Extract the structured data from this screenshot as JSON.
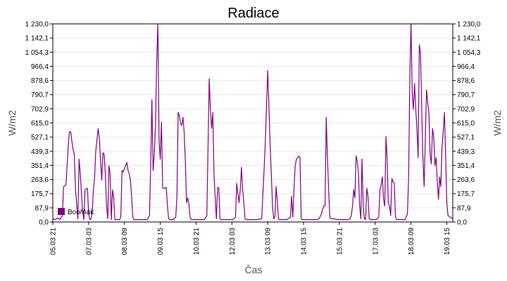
{
  "chart_data": {
    "type": "line",
    "title": "Radiace",
    "xlabel": "Čas",
    "ylabel": "W/m2",
    "ylabel_right": "W/m2",
    "ylim": [
      0,
      1230
    ],
    "yticks": [
      "0,0",
      "87,9",
      "175,7",
      "263,6",
      "351,4",
      "439,3",
      "527,1",
      "615,0",
      "702,9",
      "790,7",
      "878,6",
      "966,4",
      "1 054,3",
      "1 142,1",
      "1 230,0"
    ],
    "xticks": [
      "05.03 21",
      "07.03 03",
      "08.03 09",
      "09.03 15",
      "10.03 21",
      "12.03 03",
      "13.03 09",
      "14.03 15",
      "15.03 21",
      "17.03 03",
      "18.03 09",
      "19.03 15"
    ],
    "x_start": "05.03 21",
    "x_end": "19.03 20",
    "grid": true,
    "legend_position": "bottom-left",
    "series": [
      {
        "name": "Bouřňák",
        "color": "#800080",
        "points": [
          [
            "05.03 21",
            20
          ],
          [
            "05.03 23",
            15
          ],
          [
            "06.03 01",
            25
          ],
          [
            "06.03 03",
            15
          ],
          [
            "06.03 05",
            40
          ],
          [
            "06.03 06",
            220
          ],
          [
            "06.03 08",
            230
          ],
          [
            "06.03 10",
            480
          ],
          [
            "06.03 11",
            560
          ],
          [
            "06.03 12",
            560
          ],
          [
            "06.03 13",
            500
          ],
          [
            "06.03 14",
            450
          ],
          [
            "06.03 15",
            420
          ],
          [
            "06.03 16",
            200
          ],
          [
            "06.03 17",
            110
          ],
          [
            "06.03 18",
            20
          ],
          [
            "06.03 19",
            390
          ],
          [
            "06.03 20",
            300
          ],
          [
            "06.03 22",
            60
          ],
          [
            "06.03 23",
            15
          ],
          [
            "07.03 00",
            200
          ],
          [
            "07.03 02",
            210
          ],
          [
            "07.03 03",
            50
          ],
          [
            "07.03 04",
            15
          ],
          [
            "07.03 05",
            20
          ],
          [
            "07.03 06",
            60
          ],
          [
            "07.03 07",
            200
          ],
          [
            "07.03 08",
            270
          ],
          [
            "07.03 09",
            440
          ],
          [
            "07.03 10",
            510
          ],
          [
            "07.03 11",
            580
          ],
          [
            "07.03 12",
            520
          ],
          [
            "07.03 13",
            380
          ],
          [
            "07.03 14",
            260
          ],
          [
            "07.03 15",
            430
          ],
          [
            "07.03 16",
            420
          ],
          [
            "07.03 17",
            300
          ],
          [
            "07.03 18",
            100
          ],
          [
            "07.03 19",
            20
          ],
          [
            "07.03 20",
            350
          ],
          [
            "07.03 21",
            300
          ],
          [
            "07.03 22",
            15
          ],
          [
            "07.03 23",
            200
          ],
          [
            "08.03 00",
            150
          ],
          [
            "08.03 01",
            15
          ],
          [
            "08.03 03",
            15
          ],
          [
            "08.03 05",
            15
          ],
          [
            "08.03 06",
            30
          ],
          [
            "08.03 07",
            320
          ],
          [
            "08.03 08",
            310
          ],
          [
            "08.03 09",
            330
          ],
          [
            "08.03 10",
            350
          ],
          [
            "08.03 11",
            370
          ],
          [
            "08.03 12",
            320
          ],
          [
            "08.03 13",
            300
          ],
          [
            "08.03 14",
            260
          ],
          [
            "08.03 15",
            160
          ],
          [
            "08.03 16",
            30
          ],
          [
            "08.03 17",
            15
          ],
          [
            "08.03 20",
            15
          ],
          [
            "09.03 00",
            15
          ],
          [
            "09.03 04",
            15
          ],
          [
            "09.03 06",
            40
          ],
          [
            "09.03 07",
            350
          ],
          [
            "09.03 08",
            760
          ],
          [
            "09.03 09",
            320
          ],
          [
            "09.03 10",
            420
          ],
          [
            "09.03 11",
            600
          ],
          [
            "09.03 12",
            1000
          ],
          [
            "09.03 13",
            1230
          ],
          [
            "09.03 14",
            500
          ],
          [
            "09.03 15",
            390
          ],
          [
            "09.03 16",
            620
          ],
          [
            "09.03 17",
            210
          ],
          [
            "09.03 18",
            210
          ],
          [
            "09.03 19",
            210
          ],
          [
            "09.03 20",
            215
          ],
          [
            "09.03 21",
            100
          ],
          [
            "09.03 22",
            20
          ],
          [
            "09.03 23",
            15
          ],
          [
            "10.03 00",
            15
          ],
          [
            "10.03 02",
            15
          ],
          [
            "10.03 04",
            30
          ],
          [
            "10.03 05",
            160
          ],
          [
            "10.03 06",
            680
          ],
          [
            "10.03 07",
            660
          ],
          [
            "10.03 08",
            610
          ],
          [
            "10.03 09",
            600
          ],
          [
            "10.03 10",
            650
          ],
          [
            "10.03 11",
            560
          ],
          [
            "10.03 12",
            380
          ],
          [
            "10.03 13",
            120
          ],
          [
            "10.03 14",
            150
          ],
          [
            "10.03 15",
            110
          ],
          [
            "10.03 16",
            30
          ],
          [
            "10.03 17",
            15
          ],
          [
            "10.03 20",
            15
          ],
          [
            "11.03 00",
            15
          ],
          [
            "11.03 04",
            15
          ],
          [
            "11.03 06",
            40
          ],
          [
            "11.03 07",
            450
          ],
          [
            "11.03 08",
            890
          ],
          [
            "11.03 09",
            700
          ],
          [
            "11.03 10",
            580
          ],
          [
            "11.03 11",
            680
          ],
          [
            "11.03 12",
            300
          ],
          [
            "11.03 13",
            150
          ],
          [
            "11.03 14",
            20
          ],
          [
            "11.03 15",
            215
          ],
          [
            "11.03 16",
            210
          ],
          [
            "11.03 17",
            20
          ],
          [
            "11.03 18",
            15
          ],
          [
            "12.03 00",
            15
          ],
          [
            "12.03 02",
            15
          ],
          [
            "12.03 04",
            15
          ],
          [
            "12.03 06",
            30
          ],
          [
            "12.03 07",
            240
          ],
          [
            "12.03 08",
            180
          ],
          [
            "12.03 09",
            120
          ],
          [
            "12.03 10",
            200
          ],
          [
            "12.03 11",
            340
          ],
          [
            "12.03 12",
            200
          ],
          [
            "12.03 13",
            120
          ],
          [
            "12.03 14",
            20
          ],
          [
            "12.03 15",
            15
          ],
          [
            "12.03 20",
            15
          ],
          [
            "13.03 00",
            15
          ],
          [
            "13.03 04",
            20
          ],
          [
            "13.03 05",
            180
          ],
          [
            "13.03 06",
            330
          ],
          [
            "13.03 07",
            500
          ],
          [
            "13.03 08",
            720
          ],
          [
            "13.03 09",
            940
          ],
          [
            "13.03 10",
            720
          ],
          [
            "13.03 11",
            480
          ],
          [
            "13.03 12",
            300
          ],
          [
            "13.03 13",
            100
          ],
          [
            "13.03 14",
            20
          ],
          [
            "13.03 15",
            30
          ],
          [
            "13.03 16",
            220
          ],
          [
            "13.03 17",
            130
          ],
          [
            "13.03 18",
            20
          ],
          [
            "13.03 19",
            15
          ],
          [
            "13.03 22",
            15
          ],
          [
            "14.03 01",
            15
          ],
          [
            "14.03 04",
            30
          ],
          [
            "14.03 05",
            160
          ],
          [
            "14.03 06",
            30
          ],
          [
            "14.03 07",
            200
          ],
          [
            "14.03 08",
            350
          ],
          [
            "14.03 09",
            390
          ],
          [
            "14.03 10",
            400
          ],
          [
            "14.03 11",
            410
          ],
          [
            "14.03 12",
            400
          ],
          [
            "14.03 13",
            20
          ],
          [
            "14.03 14",
            15
          ],
          [
            "14.03 17",
            15
          ],
          [
            "14.03 20",
            15
          ],
          [
            "14.03 23",
            15
          ],
          [
            "15.03 02",
            15
          ],
          [
            "15.03 04",
            20
          ],
          [
            "15.03 06",
            50
          ],
          [
            "15.03 07",
            80
          ],
          [
            "15.03 08",
            100
          ],
          [
            "15.03 09",
            100
          ],
          [
            "15.03 10",
            650
          ],
          [
            "15.03 11",
            400
          ],
          [
            "15.03 12",
            200
          ],
          [
            "15.03 13",
            30
          ],
          [
            "15.03 14",
            20
          ],
          [
            "15.03 16",
            20
          ],
          [
            "15.03 20",
            15
          ],
          [
            "16.03 00",
            15
          ],
          [
            "16.03 04",
            15
          ],
          [
            "16.03 06",
            20
          ],
          [
            "16.03 07",
            40
          ],
          [
            "16.03 08",
            100
          ],
          [
            "16.03 09",
            200
          ],
          [
            "16.03 10",
            150
          ],
          [
            "16.03 11",
            410
          ],
          [
            "16.03 12",
            380
          ],
          [
            "16.03 13",
            300
          ],
          [
            "16.03 14",
            100
          ],
          [
            "16.03 15",
            20
          ],
          [
            "16.03 16",
            390
          ],
          [
            "16.03 17",
            100
          ],
          [
            "16.03 18",
            20
          ],
          [
            "16.03 19",
            15
          ],
          [
            "16.03 20",
            210
          ],
          [
            "16.03 21",
            160
          ],
          [
            "16.03 22",
            20
          ],
          [
            "16.03 23",
            15
          ],
          [
            "17.03 04",
            15
          ],
          [
            "17.03 06",
            30
          ],
          [
            "17.03 07",
            200
          ],
          [
            "17.03 08",
            230
          ],
          [
            "17.03 09",
            280
          ],
          [
            "17.03 10",
            140
          ],
          [
            "17.03 11",
            100
          ],
          [
            "17.03 12",
            530
          ],
          [
            "17.03 13",
            400
          ],
          [
            "17.03 14",
            120
          ],
          [
            "17.03 15",
            100
          ],
          [
            "17.03 16",
            40
          ],
          [
            "17.03 17",
            270
          ],
          [
            "17.03 18",
            250
          ],
          [
            "17.03 19",
            240
          ],
          [
            "17.03 20",
            30
          ],
          [
            "17.03 21",
            15
          ],
          [
            "18.03 00",
            15
          ],
          [
            "18.03 04",
            15
          ],
          [
            "18.03 06",
            50
          ],
          [
            "18.03 07",
            280
          ],
          [
            "18.03 08",
            900
          ],
          [
            "18.03 09",
            1230
          ],
          [
            "18.03 10",
            800
          ],
          [
            "18.03 11",
            700
          ],
          [
            "18.03 12",
            860
          ],
          [
            "18.03 13",
            700
          ],
          [
            "18.03 14",
            580
          ],
          [
            "18.03 15",
            400
          ],
          [
            "18.03 16",
            1100
          ],
          [
            "18.03 17",
            1050
          ],
          [
            "18.03 18",
            700
          ],
          [
            "18.03 19",
            400
          ],
          [
            "18.03 20",
            220
          ],
          [
            "18.03 21",
            520
          ],
          [
            "18.03 22",
            820
          ],
          [
            "18.03 23",
            740
          ],
          [
            "19.03 00",
            680
          ],
          [
            "19.03 01",
            420
          ],
          [
            "19.03 02",
            360
          ],
          [
            "19.03 03",
            580
          ],
          [
            "19.03 04",
            530
          ],
          [
            "19.03 05",
            350
          ],
          [
            "19.03 06",
            400
          ],
          [
            "19.03 07",
            250
          ],
          [
            "19.03 08",
            140
          ],
          [
            "19.03 09",
            280
          ],
          [
            "19.03 10",
            220
          ],
          [
            "19.03 11",
            460
          ],
          [
            "19.03 12",
            560
          ],
          [
            "19.03 13",
            680
          ],
          [
            "19.03 14",
            420
          ],
          [
            "19.03 15",
            120
          ],
          [
            "19.03 16",
            40
          ],
          [
            "19.03 18",
            30
          ],
          [
            "19.03 20",
            20
          ]
        ]
      }
    ]
  }
}
